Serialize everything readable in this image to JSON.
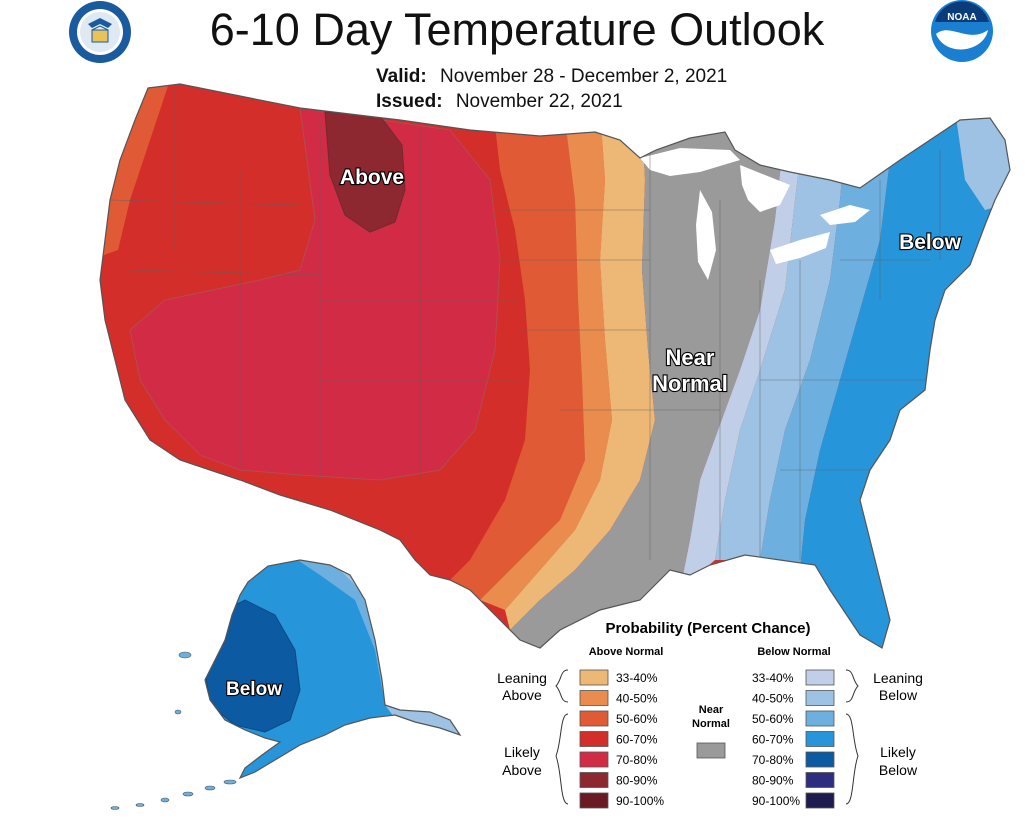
{
  "title": "6-10 Day Temperature Outlook",
  "valid_label": "Valid:",
  "valid_value": "November 28 - December 2, 2021",
  "issued_label": "Issued:",
  "issued_value": "November 22, 2021",
  "logos": {
    "left": "department-of-commerce-seal",
    "right": "noaa-logo",
    "noaa_text": "NOAA"
  },
  "map_labels": {
    "above": "Above",
    "below_east": "Below",
    "near_normal_line1": "Near",
    "near_normal_line2": "Normal",
    "below_alaska": "Below"
  },
  "legend": {
    "title": "Probability (Percent Chance)",
    "above_header": "Above Normal",
    "below_header": "Below Normal",
    "near_header_line1": "Near",
    "near_header_line2": "Normal",
    "leaning_above_1": "Leaning",
    "leaning_above_2": "Above",
    "likely_above_1": "Likely",
    "likely_above_2": "Above",
    "leaning_below_1": "Leaning",
    "leaning_below_2": "Below",
    "likely_below_1": "Likely",
    "likely_below_2": "Below",
    "above": [
      {
        "label": "33-40%",
        "color": "#EDB775"
      },
      {
        "label": "40-50%",
        "color": "#E98C4D"
      },
      {
        "label": "50-60%",
        "color": "#E05A35"
      },
      {
        "label": "60-70%",
        "color": "#D32E2A"
      },
      {
        "label": "70-80%",
        "color": "#D22B45"
      },
      {
        "label": "80-90%",
        "color": "#8E2830"
      },
      {
        "label": "90-100%",
        "color": "#6A1A22"
      }
    ],
    "below": [
      {
        "label": "33-40%",
        "color": "#C1CEE8"
      },
      {
        "label": "40-50%",
        "color": "#9DC2E4"
      },
      {
        "label": "50-60%",
        "color": "#6DB0E0"
      },
      {
        "label": "60-70%",
        "color": "#2795DA"
      },
      {
        "label": "70-80%",
        "color": "#0B5AA2"
      },
      {
        "label": "80-90%",
        "color": "#2D2E7F"
      },
      {
        "label": "90-100%",
        "color": "#1E1B4F"
      }
    ],
    "near_color": "#9A9A9A"
  }
}
